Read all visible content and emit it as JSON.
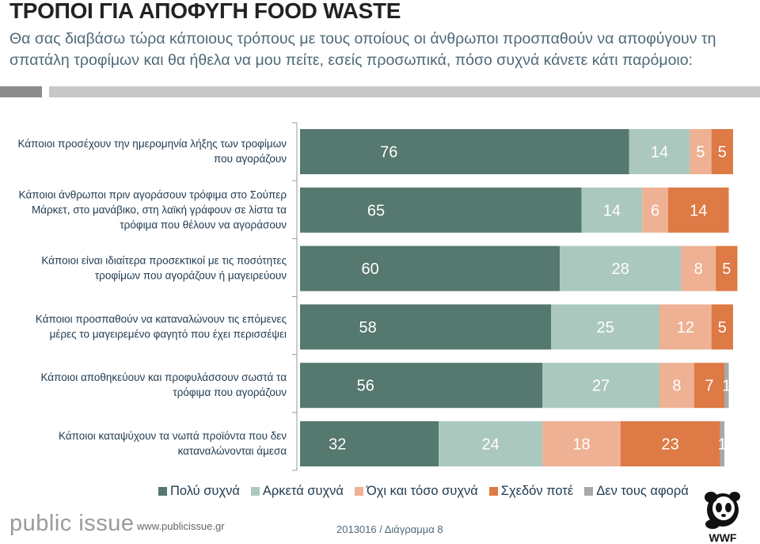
{
  "header": {
    "title": "ΤΡΟΠΟΙ ΓΙΑ ΑΠΟΦΥΓΗ FOOD WASTE",
    "subtitle": "Θα σας διαβάσω τώρα κάποιους τρόπους με τους οποίους οι άνθρωποι προσπαθούν να αποφύγουν τη σπατάλη τροφίμων και θα ήθελα να μου πείτε, εσείς προσωπικά, πόσο συχνά κάνετε κάτι παρόμοιο:"
  },
  "chart_data": {
    "type": "bar",
    "orientation": "horizontal",
    "stacked": true,
    "categories": [
      [
        "Κάποιοι προσέχουν την ημερομηνία λήξης των τροφίμων",
        "που αγοράζουν"
      ],
      [
        "Κάποιοι άνθρωποι πριν αγοράσουν τρόφιμα στο Σούπερ",
        "Μάρκετ, στο μανάβικο, στη λαϊκή γράφουν σε λίστα τα",
        "τρόφιμα που θέλουν να αγοράσουν"
      ],
      [
        "Κάποιοι είναι ιδιαίτερα προσεκτικοί με τις ποσότητες",
        "τροφίμων που αγοράζουν ή μαγειρεύουν"
      ],
      [
        "Κάποιοι προσπαθούν να καταναλώνουν τις επόμενες",
        "μέρες το μαγειρεμένο φαγητό που έχει περισσέψει"
      ],
      [
        "Κάποιοι αποθηκεύουν και προφυλάσσουν σωστά τα",
        "τρόφιμα που αγοράζουν"
      ],
      [
        "Κάποιοι καταψύχουν τα νωπά προϊόντα που δεν",
        "καταναλώνονται άμεσα"
      ]
    ],
    "series": [
      {
        "name": "Πολύ συχνά",
        "color": "#55786f",
        "label_color": "#ffffff",
        "values": [
          76,
          65,
          60,
          58,
          56,
          32
        ]
      },
      {
        "name": "Αρκετά συχνά",
        "color": "#abc8bf",
        "label_color": "#ffffff",
        "values": [
          14,
          14,
          28,
          25,
          27,
          24
        ]
      },
      {
        "name": "Όχι και τόσο συχνά",
        "color": "#eeb193",
        "label_color": "#ffffff",
        "values": [
          5,
          6,
          8,
          12,
          8,
          18
        ]
      },
      {
        "name": "Σχεδόν ποτέ",
        "color": "#dd7a45",
        "label_color": "#ffffff",
        "values": [
          5,
          14,
          5,
          5,
          7,
          23
        ]
      },
      {
        "name": "Δεν τους αφορά",
        "color": "#a8a8a8",
        "label_color": "#ffffff",
        "values": [
          0,
          0,
          0,
          0,
          1,
          1
        ]
      }
    ],
    "xlim": [
      0,
      100
    ],
    "legend": "bottom",
    "grid": false
  },
  "footer": {
    "brand": "public issue",
    "site": "www.publicissue.gr",
    "chart_no": "2013016 / Διάγραμμα 8",
    "logo_text": "WWF"
  }
}
